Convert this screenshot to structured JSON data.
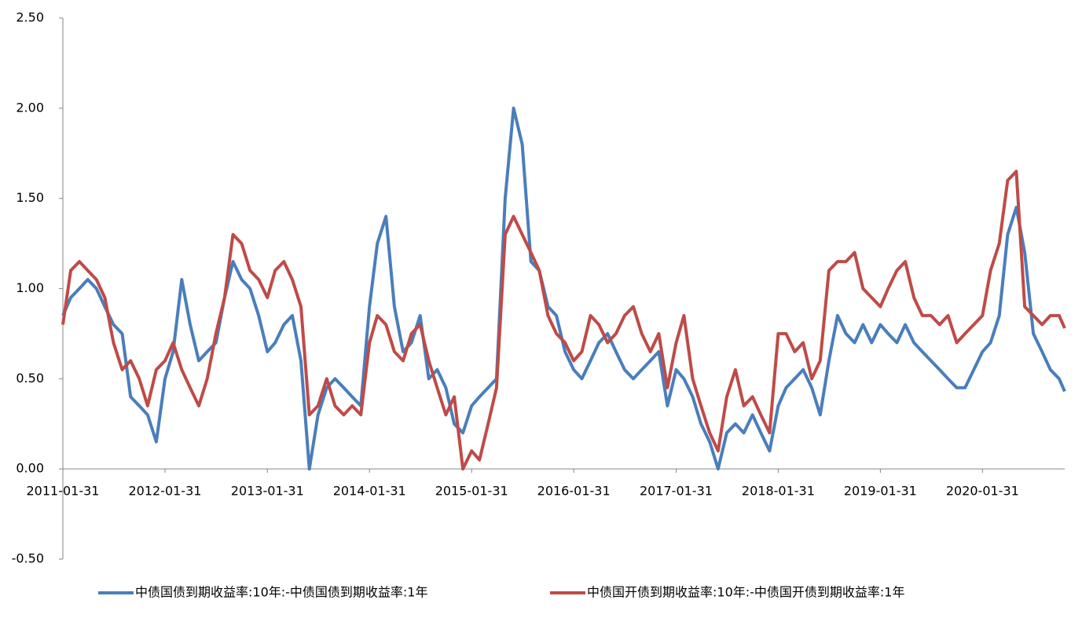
{
  "chart_data": {
    "type": "line",
    "x": [
      "2011-01-31",
      "2011-02-28",
      "2011-03-31",
      "2011-04-30",
      "2011-05-31",
      "2011-06-30",
      "2011-07-31",
      "2011-08-31",
      "2011-09-30",
      "2011-10-31",
      "2011-11-30",
      "2011-12-31",
      "2012-01-31",
      "2012-02-29",
      "2012-03-31",
      "2012-04-30",
      "2012-05-31",
      "2012-06-30",
      "2012-07-31",
      "2012-08-31",
      "2012-09-30",
      "2012-10-31",
      "2012-11-30",
      "2012-12-31",
      "2013-01-31",
      "2013-02-28",
      "2013-03-31",
      "2013-04-30",
      "2013-05-31",
      "2013-06-30",
      "2013-07-31",
      "2013-08-31",
      "2013-09-30",
      "2013-10-31",
      "2013-11-30",
      "2013-12-31",
      "2014-01-31",
      "2014-02-28",
      "2014-03-31",
      "2014-04-30",
      "2014-05-31",
      "2014-06-30",
      "2014-07-31",
      "2014-08-31",
      "2014-09-30",
      "2014-10-31",
      "2014-11-30",
      "2014-12-31",
      "2015-01-31",
      "2015-02-28",
      "2015-03-31",
      "2015-04-30",
      "2015-05-31",
      "2015-06-30",
      "2015-07-31",
      "2015-08-31",
      "2015-09-30",
      "2015-10-31",
      "2015-11-30",
      "2015-12-31",
      "2016-01-31",
      "2016-02-29",
      "2016-03-31",
      "2016-04-30",
      "2016-05-31",
      "2016-06-30",
      "2016-07-31",
      "2016-08-31",
      "2016-09-30",
      "2016-10-31",
      "2016-11-30",
      "2016-12-31",
      "2017-01-31",
      "2017-02-28",
      "2017-03-31",
      "2017-04-30",
      "2017-05-31",
      "2017-06-30",
      "2017-07-31",
      "2017-08-31",
      "2017-09-30",
      "2017-10-31",
      "2017-11-30",
      "2017-12-31",
      "2018-01-31",
      "2018-02-28",
      "2018-03-31",
      "2018-04-30",
      "2018-05-31",
      "2018-06-30",
      "2018-07-31",
      "2018-08-31",
      "2018-09-30",
      "2018-10-31",
      "2018-11-30",
      "2018-12-31",
      "2019-01-31",
      "2019-02-28",
      "2019-03-31",
      "2019-04-30",
      "2019-05-31",
      "2019-06-30",
      "2019-07-31",
      "2019-08-31",
      "2019-09-30",
      "2019-10-31",
      "2019-11-30",
      "2019-12-31",
      "2020-01-31",
      "2020-02-29",
      "2020-03-31",
      "2020-04-30",
      "2020-05-31",
      "2020-06-30",
      "2020-07-31",
      "2020-08-31",
      "2020-09-30",
      "2020-10-31",
      "2020-11-20"
    ],
    "series": [
      {
        "name": "中债国债到期收益率:10年:-中债国债到期收益率:1年",
        "color": "#4a7ebb",
        "values": [
          0.85,
          0.95,
          1.0,
          1.05,
          1.0,
          0.9,
          0.8,
          0.75,
          0.4,
          0.35,
          0.3,
          0.15,
          0.5,
          0.65,
          1.05,
          0.8,
          0.6,
          0.65,
          0.7,
          0.95,
          1.15,
          1.05,
          1.0,
          0.85,
          0.65,
          0.7,
          0.8,
          0.85,
          0.6,
          0.0,
          0.3,
          0.45,
          0.5,
          0.45,
          0.4,
          0.35,
          0.9,
          1.25,
          1.4,
          0.9,
          0.65,
          0.7,
          0.85,
          0.5,
          0.55,
          0.45,
          0.25,
          0.2,
          0.35,
          0.4,
          0.45,
          0.5,
          1.5,
          2.0,
          1.8,
          1.15,
          1.1,
          0.9,
          0.85,
          0.65,
          0.55,
          0.5,
          0.6,
          0.7,
          0.75,
          0.65,
          0.55,
          0.5,
          0.55,
          0.6,
          0.65,
          0.35,
          0.55,
          0.5,
          0.4,
          0.25,
          0.15,
          0.0,
          0.2,
          0.25,
          0.2,
          0.3,
          0.2,
          0.1,
          0.35,
          0.45,
          0.5,
          0.55,
          0.45,
          0.3,
          0.6,
          0.85,
          0.75,
          0.7,
          0.8,
          0.7,
          0.8,
          0.75,
          0.7,
          0.8,
          0.7,
          0.65,
          0.6,
          0.55,
          0.5,
          0.45,
          0.45,
          0.55,
          0.65,
          0.7,
          0.85,
          1.3,
          1.45,
          1.2,
          0.75,
          0.65,
          0.55,
          0.5,
          0.43
        ]
      },
      {
        "name": "中债国开债到期收益率:10年:-中债国开债到期收益率:1年",
        "color": "#be4b48",
        "values": [
          0.8,
          1.1,
          1.15,
          1.1,
          1.05,
          0.95,
          0.7,
          0.55,
          0.6,
          0.5,
          0.35,
          0.55,
          0.6,
          0.7,
          0.55,
          0.45,
          0.35,
          0.5,
          0.75,
          0.95,
          1.3,
          1.25,
          1.1,
          1.05,
          0.95,
          1.1,
          1.15,
          1.05,
          0.9,
          0.3,
          0.35,
          0.5,
          0.35,
          0.3,
          0.35,
          0.3,
          0.7,
          0.85,
          0.8,
          0.65,
          0.6,
          0.75,
          0.8,
          0.6,
          0.45,
          0.3,
          0.4,
          0.0,
          0.1,
          0.05,
          0.25,
          0.45,
          1.3,
          1.4,
          1.3,
          1.2,
          1.1,
          0.85,
          0.75,
          0.7,
          0.6,
          0.65,
          0.85,
          0.8,
          0.7,
          0.75,
          0.85,
          0.9,
          0.75,
          0.65,
          0.75,
          0.45,
          0.7,
          0.85,
          0.5,
          0.35,
          0.2,
          0.1,
          0.4,
          0.55,
          0.35,
          0.4,
          0.3,
          0.2,
          0.75,
          0.75,
          0.65,
          0.7,
          0.5,
          0.6,
          1.1,
          1.15,
          1.15,
          1.2,
          1.0,
          0.95,
          0.9,
          1.0,
          1.1,
          1.15,
          0.95,
          0.85,
          0.85,
          0.8,
          0.85,
          0.7,
          0.75,
          0.8,
          0.85,
          1.1,
          1.25,
          1.6,
          1.65,
          0.9,
          0.85,
          0.8,
          0.85,
          0.85,
          0.78
        ]
      }
    ],
    "xlim": [
      "2011-01-31",
      "2020-11-20"
    ],
    "xticks": [
      "2011-01-31",
      "2012-01-31",
      "2013-01-31",
      "2014-01-31",
      "2015-01-31",
      "2016-01-31",
      "2017-01-31",
      "2018-01-31",
      "2019-01-31",
      "2020-01-31"
    ],
    "ylim": [
      -0.5,
      2.5
    ],
    "yticks": [
      {
        "value": -0.5,
        "label": "-0.50"
      },
      {
        "value": 0,
        "label": "0.00"
      },
      {
        "value": 0.5,
        "label": "0.50"
      },
      {
        "value": 1,
        "label": "1.00"
      },
      {
        "value": 1.5,
        "label": "1.50"
      },
      {
        "value": 2,
        "label": "2.00"
      },
      {
        "value": 2.5,
        "label": "2.50"
      }
    ],
    "legend": "bottom"
  }
}
